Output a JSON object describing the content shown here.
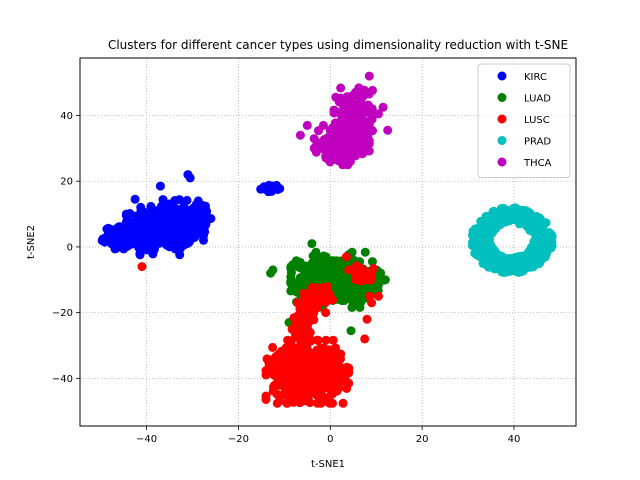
{
  "chart_data": {
    "type": "scatter",
    "title": "Clusters for different cancer types using dimensionality reduction with t-SNE",
    "xlabel": "t-SNE1",
    "ylabel": "t-SNE2",
    "xlim": [
      -54.5,
      53.5
    ],
    "ylim": [
      -54.5,
      57.5
    ],
    "xticks": [
      -40,
      -20,
      0,
      20,
      40
    ],
    "yticks": [
      -40,
      -20,
      0,
      20,
      40
    ],
    "grid": true,
    "legend_position": "top-right",
    "series": [
      {
        "name": "KIRC",
        "color": "#0000ff",
        "clusters": [
          {
            "cx": -36,
            "cy": 6,
            "rx": 7,
            "ry": 7,
            "n": 420
          },
          {
            "cx": -45,
            "cy": 3,
            "rx": 4,
            "ry": 3,
            "n": 140
          },
          {
            "cx": -29,
            "cy": 9,
            "rx": 2.5,
            "ry": 5,
            "n": 60
          },
          {
            "cx": -13,
            "cy": 18,
            "rx": 1.8,
            "ry": 1,
            "n": 15
          }
        ],
        "points": [
          [
            -31,
            22
          ],
          [
            -30.5,
            21
          ],
          [
            -42.5,
            14.5
          ],
          [
            -37,
            18.5
          ],
          [
            -6.5,
            -23.5
          ],
          [
            -6,
            -23
          ]
        ]
      },
      {
        "name": "LUAD",
        "color": "#008000",
        "clusters": [
          {
            "cx": 1,
            "cy": -10,
            "rx": 8,
            "ry": 7,
            "n": 520
          },
          {
            "cx": 8,
            "cy": -11,
            "rx": 3,
            "ry": 4,
            "n": 100
          }
        ],
        "points": [
          [
            -13,
            -8
          ],
          [
            -12.5,
            -7
          ],
          [
            -7,
            -26
          ],
          [
            4.5,
            -25.5
          ],
          [
            -9,
            -23
          ],
          [
            12,
            -10
          ],
          [
            -4,
            1
          ]
        ]
      },
      {
        "name": "LUSC",
        "color": "#ff0000",
        "clusters": [
          {
            "cx": -5,
            "cy": -38,
            "rx": 7.5,
            "ry": 8,
            "n": 650
          },
          {
            "cx": -6,
            "cy": -23,
            "rx": 2,
            "ry": 5,
            "n": 70
          },
          {
            "cx": -3,
            "cy": -15,
            "rx": 3,
            "ry": 3,
            "n": 50
          },
          {
            "cx": 7,
            "cy": -8,
            "rx": 2,
            "ry": 2.5,
            "n": 35
          }
        ],
        "points": [
          [
            -41,
            -6
          ],
          [
            9,
            -17
          ],
          [
            10.5,
            -15
          ],
          [
            8,
            -22
          ],
          [
            7.5,
            -28
          ],
          [
            3.5,
            -3
          ],
          [
            4,
            -7
          ],
          [
            -1,
            -20
          ],
          [
            8.5,
            -15
          ]
        ]
      },
      {
        "name": "PRAD",
        "color": "#00bfbf",
        "ring": {
          "cx": 39.5,
          "cy": 2,
          "rx": 8.5,
          "ry": 9.5,
          "n": 480
        }
      },
      {
        "name": "THCA",
        "color": "#bf00bf",
        "clusters": [
          {
            "cx": 5,
            "cy": 40,
            "rx": 3.5,
            "ry": 7,
            "n": 180
          },
          {
            "cx": 2.5,
            "cy": 31,
            "rx": 5,
            "ry": 5,
            "n": 300
          }
        ],
        "points": [
          [
            -6.5,
            34
          ],
          [
            -5,
            37
          ],
          [
            11.5,
            42.5
          ],
          [
            12.5,
            35.5
          ],
          [
            10.5,
            40.5
          ],
          [
            -1.5,
            37
          ],
          [
            8.5,
            52
          ]
        ]
      }
    ]
  }
}
